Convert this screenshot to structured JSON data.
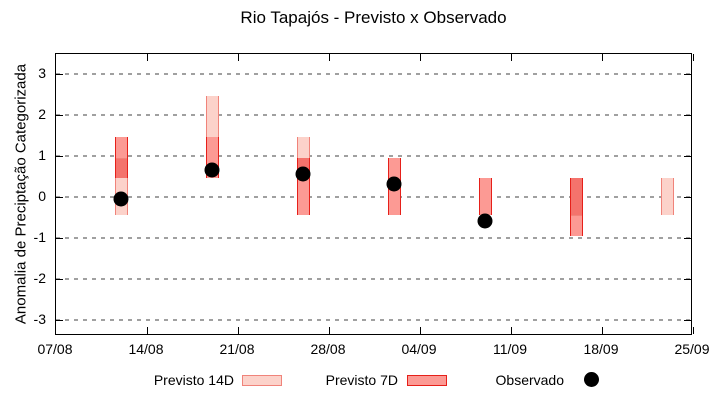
{
  "title": "Rio Tapajós - Previsto x Observado",
  "y_axis": {
    "label": "Anomalia de Preciptação Categorizada",
    "ticks": [
      "3",
      "2",
      "1",
      "0",
      "-1",
      "-2",
      "-3"
    ],
    "tick_values": [
      3,
      2,
      1,
      0,
      -1,
      -2,
      -3
    ]
  },
  "x_axis": {
    "ticks": [
      "07/08",
      "14/08",
      "21/08",
      "28/08",
      "04/09",
      "11/09",
      "18/09",
      "25/09"
    ]
  },
  "legend": {
    "items": [
      {
        "label": "Previsto 14D",
        "swatch": "previsto-14d"
      },
      {
        "label": "Previsto 7D",
        "swatch": "previsto-7d"
      },
      {
        "label": "Observado",
        "swatch": "observado-dot"
      }
    ]
  },
  "colors": {
    "previsto14_fill": "#fcd2ca",
    "previsto14_border": "#f0837a",
    "previsto7_fill": "#fc9a94",
    "previsto7_border": "#e6201a",
    "overlap_fill": "#f4736c",
    "observed_dot": "#000000",
    "grid": "#a0a0a0",
    "axis": "#000000"
  },
  "chart_data": {
    "type": "bar",
    "subtype": "range-bars-with-scatter-overlay",
    "title": "Rio Tapajós - Previsto x Observado",
    "xlabel": "",
    "ylabel": "Anomalia de Preciptação Categorizada",
    "ylim": [
      -3.45,
      3.45
    ],
    "x_tick_labels": [
      "07/08",
      "14/08",
      "21/08",
      "28/08",
      "04/09",
      "11/09",
      "18/09",
      "25/09"
    ],
    "grid": "horizontal-dashed",
    "legend_position": "bottom",
    "categories": [
      "12/08",
      "19/08",
      "26/08",
      "02/09",
      "09/09",
      "16/09",
      "23/09"
    ],
    "category_days_from_start": [
      5,
      12,
      19,
      26,
      33,
      40,
      47
    ],
    "series": [
      {
        "name": "Previsto 14D",
        "type": "range",
        "ranges": [
          [
            -0.45,
            0.95
          ],
          [
            1.45,
            2.45
          ],
          [
            0.45,
            1.45
          ],
          [
            -0.45,
            0.95
          ],
          null,
          [
            -0.45,
            0.45
          ],
          [
            -0.45,
            0.45
          ]
        ]
      },
      {
        "name": "Previsto 7D",
        "type": "range",
        "ranges": [
          [
            0.45,
            1.45
          ],
          [
            0.45,
            1.45
          ],
          [
            -0.45,
            0.95
          ],
          [
            -0.45,
            0.95
          ],
          [
            -0.45,
            0.45
          ],
          [
            -0.95,
            0.45
          ],
          null
        ]
      },
      {
        "name": "Observado",
        "type": "scatter",
        "values": [
          -0.05,
          0.65,
          0.55,
          0.3,
          -0.6,
          null,
          null
        ]
      }
    ],
    "render": {
      "groups": [
        {
          "day": 5,
          "boxes": [
            {
              "lo": 0.45,
              "hi": 1.45,
              "border": "previsto7_border",
              "segs": [
                {
                  "lo": 0.95,
                  "hi": 1.45,
                  "fill": "previsto7_fill"
                },
                {
                  "lo": 0.45,
                  "hi": 0.95,
                  "fill": "overlap_fill"
                }
              ],
              "dividers": [
                {
                  "at": 0.95,
                  "color": "previsto14_border"
                }
              ]
            },
            {
              "lo": -0.45,
              "hi": 0.45,
              "border": "previsto14_border",
              "segs": [
                {
                  "lo": -0.45,
                  "hi": 0.45,
                  "fill": "previsto14_fill"
                }
              ],
              "dividers": []
            }
          ]
        },
        {
          "day": 12,
          "boxes": [
            {
              "lo": 1.45,
              "hi": 2.45,
              "border": "previsto14_border",
              "segs": [
                {
                  "lo": 1.45,
                  "hi": 2.45,
                  "fill": "previsto14_fill"
                }
              ],
              "dividers": []
            },
            {
              "lo": 0.45,
              "hi": 1.45,
              "border": "previsto7_border",
              "segs": [
                {
                  "lo": 0.45,
                  "hi": 1.45,
                  "fill": "previsto7_fill"
                }
              ],
              "dividers": []
            }
          ]
        },
        {
          "day": 19,
          "boxes": [
            {
              "lo": 0.95,
              "hi": 1.45,
              "border": "previsto14_border",
              "segs": [
                {
                  "lo": 0.95,
                  "hi": 1.45,
                  "fill": "previsto14_fill"
                }
              ],
              "dividers": []
            },
            {
              "lo": -0.45,
              "hi": 0.95,
              "border": "previsto7_border",
              "segs": [
                {
                  "lo": 0.45,
                  "hi": 0.95,
                  "fill": "overlap_fill"
                },
                {
                  "lo": -0.45,
                  "hi": 0.45,
                  "fill": "previsto7_fill"
                }
              ],
              "dividers": [
                {
                  "at": 0.45,
                  "color": "previsto14_border"
                }
              ]
            }
          ]
        },
        {
          "day": 26,
          "boxes": [
            {
              "lo": -0.45,
              "hi": 0.95,
              "border": "previsto7_border",
              "segs": [
                {
                  "lo": -0.45,
                  "hi": 0.95,
                  "fill": "previsto7_fill"
                }
              ],
              "dividers": []
            }
          ]
        },
        {
          "day": 33,
          "boxes": [
            {
              "lo": -0.45,
              "hi": 0.45,
              "border": "previsto7_border",
              "segs": [
                {
                  "lo": -0.45,
                  "hi": 0.45,
                  "fill": "previsto7_fill"
                }
              ],
              "dividers": []
            }
          ]
        },
        {
          "day": 40,
          "boxes": [
            {
              "lo": -0.95,
              "hi": 0.45,
              "border": "previsto7_border",
              "segs": [
                {
                  "lo": -0.45,
                  "hi": 0.45,
                  "fill": "overlap_fill"
                },
                {
                  "lo": -0.95,
                  "hi": -0.45,
                  "fill": "previsto7_fill"
                }
              ],
              "dividers": [
                {
                  "at": -0.45,
                  "color": "previsto14_border"
                }
              ]
            }
          ]
        },
        {
          "day": 47,
          "boxes": [
            {
              "lo": -0.45,
              "hi": 0.45,
              "border": "previsto14_border",
              "segs": [
                {
                  "lo": -0.45,
                  "hi": 0.45,
                  "fill": "previsto14_fill"
                }
              ],
              "dividers": []
            }
          ]
        }
      ],
      "dots": [
        {
          "day": 5,
          "value": -0.05
        },
        {
          "day": 12,
          "value": 0.65
        },
        {
          "day": 19,
          "value": 0.55
        },
        {
          "day": 26,
          "value": 0.3
        },
        {
          "day": 33,
          "value": -0.6
        }
      ]
    }
  }
}
